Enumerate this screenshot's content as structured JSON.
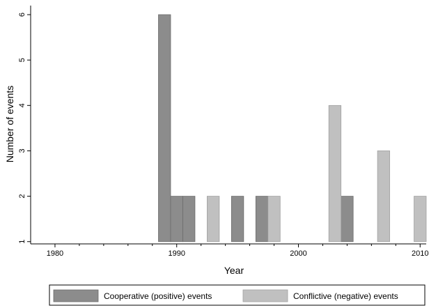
{
  "chart_data": {
    "type": "bar",
    "xlabel": "Year",
    "ylabel": "Number of events",
    "xlim": [
      1978,
      2010.5
    ],
    "ylim": [
      0.95,
      6.2
    ],
    "x_ticks": [
      1980,
      1990,
      2000,
      2010
    ],
    "x_tick_labels": [
      "1980",
      "1990",
      "2000",
      "2010"
    ],
    "y_ticks": [
      1,
      2,
      3,
      4,
      5,
      6
    ],
    "y_tick_labels": [
      "1",
      "2",
      "3",
      "4",
      "5",
      "6"
    ],
    "baseline": 1,
    "bar_width_years": 1,
    "grid": false,
    "legend_position": "bottom",
    "series": [
      {
        "name": "Cooperative (positive) events",
        "color": "#8c8c8c",
        "points": [
          {
            "x": 1989,
            "y": 6
          },
          {
            "x": 1990,
            "y": 2
          },
          {
            "x": 1991,
            "y": 2
          },
          {
            "x": 1995,
            "y": 2
          },
          {
            "x": 1997,
            "y": 2
          },
          {
            "x": 2004,
            "y": 2
          }
        ]
      },
      {
        "name": "Conflictive (negative) events",
        "color": "#c0c0c0",
        "points": [
          {
            "x": 1993,
            "y": 2
          },
          {
            "x": 1998,
            "y": 2
          },
          {
            "x": 2003,
            "y": 4
          },
          {
            "x": 2007,
            "y": 3
          },
          {
            "x": 2010,
            "y": 2
          }
        ]
      }
    ]
  }
}
